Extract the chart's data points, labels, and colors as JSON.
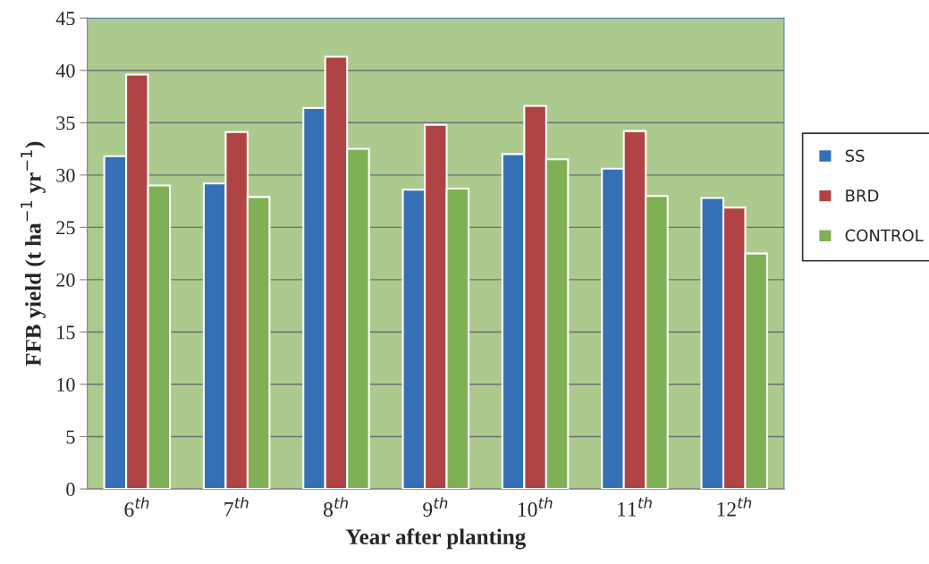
{
  "chart_data": {
    "type": "bar",
    "xlabel": "Year after planting",
    "ylabel": "FFB yield (t ha$^{−1}$ yr$^{−1}$)",
    "categories": [
      "6$^{th}$",
      "7$^{th}$",
      "8$^{th}$",
      "9$^{th}$",
      "10$^{th}$",
      "11$^{th}$",
      "12$^{th}$"
    ],
    "series": [
      {
        "name": "SS",
        "color": "#3570b7",
        "values": [
          31.8,
          29.2,
          36.4,
          28.6,
          32.0,
          30.6,
          27.8
        ]
      },
      {
        "name": "BRD",
        "color": "#b04444",
        "values": [
          39.6,
          34.1,
          41.3,
          34.8,
          36.6,
          34.2,
          26.9
        ]
      },
      {
        "name": "CONTROL",
        "color": "#80b055",
        "values": [
          29.0,
          27.9,
          32.5,
          28.7,
          31.5,
          28.0,
          22.5
        ]
      }
    ],
    "ylim": [
      0,
      45
    ],
    "yticks": [
      0,
      5,
      10,
      15,
      20,
      25,
      30,
      35,
      40,
      45
    ],
    "grid": "y",
    "legend": "right"
  }
}
